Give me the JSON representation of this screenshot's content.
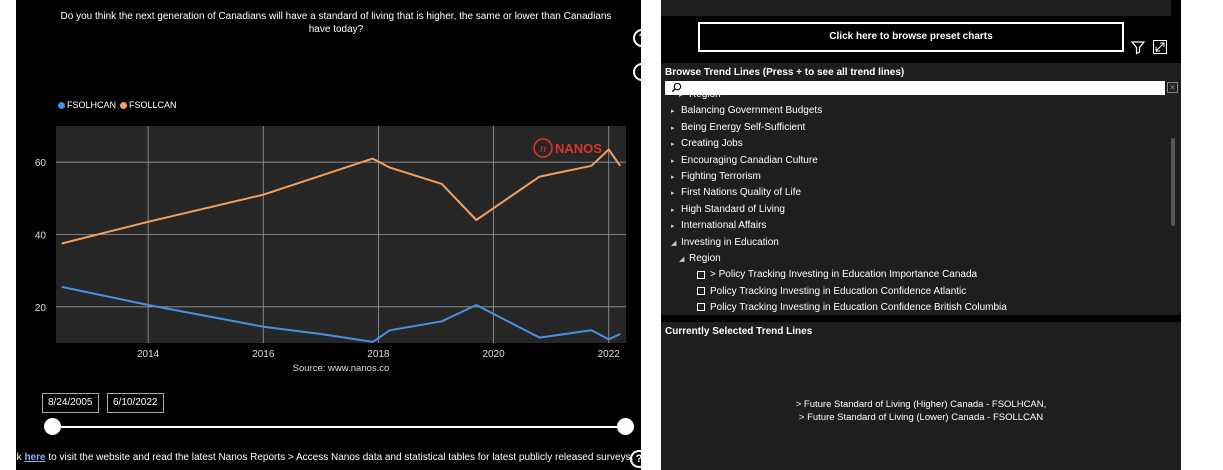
{
  "question": "Do you think the next generation of Canadians will have a standard of living that is higher, the same or lower than Canadians have today?",
  "chart_data": {
    "type": "line",
    "x_range": [
      2012.4,
      2022.3
    ],
    "ylim": [
      10,
      70
    ],
    "grid": true,
    "legend_position": "top-left",
    "x_ticks": [
      "2014",
      "2016",
      "2018",
      "2020",
      "2022"
    ],
    "y_ticks": [
      "20",
      "40",
      "60"
    ],
    "source": "Source: www.nanos.co",
    "watermark": "NANOS",
    "series": [
      {
        "name": "FSOLHCAN",
        "color": "#4a90e2",
        "x": [
          2012.5,
          2014.0,
          2015.0,
          2016.0,
          2017.0,
          2017.9,
          2018.2,
          2019.1,
          2019.7,
          2020.8,
          2021.7,
          2022.0,
          2022.2
        ],
        "y": [
          25.5,
          20.5,
          17.5,
          14.5,
          12.5,
          10.3,
          13.5,
          16.0,
          20.5,
          11.5,
          13.5,
          11.0,
          12.5
        ]
      },
      {
        "name": "FSOLLCAN",
        "color": "#f0a060",
        "x": [
          2012.5,
          2014.0,
          2016.0,
          2017.9,
          2018.2,
          2019.1,
          2019.7,
          2020.8,
          2021.7,
          2022.0,
          2022.2
        ],
        "y": [
          37.5,
          43.5,
          51.0,
          61.0,
          58.5,
          54.0,
          44.0,
          56.0,
          59.0,
          63.5,
          59.0
        ]
      }
    ]
  },
  "date_range": {
    "start": "8/24/2005",
    "end": "6/10/2022"
  },
  "footer": {
    "prefix": "Click ",
    "link": "here",
    "suffix": " to visit the website and read the latest Nanos Reports > Access Nanos data and statistical tables for latest publicly released surveys."
  },
  "preset_button": "Click here to browse preset charts",
  "tree": {
    "title": "Browse Trend Lines (Press + to see all trend lines)",
    "items": [
      {
        "label": "Region",
        "type": "sub-collapsed"
      },
      {
        "label": "Balancing Government Budgets",
        "type": "collapsed"
      },
      {
        "label": "Being Energy Self-Sufficient",
        "type": "collapsed"
      },
      {
        "label": "Creating Jobs",
        "type": "collapsed"
      },
      {
        "label": "Encouraging Canadian Culture",
        "type": "collapsed"
      },
      {
        "label": "Fighting Terrorism",
        "type": "collapsed"
      },
      {
        "label": "First Nations Quality of Life",
        "type": "collapsed"
      },
      {
        "label": "High Standard of Living",
        "type": "collapsed"
      },
      {
        "label": "International Affairs",
        "type": "collapsed"
      },
      {
        "label": "Investing in Education",
        "type": "expanded"
      },
      {
        "label": "Region",
        "type": "sub-expanded"
      },
      {
        "label": "> Policy Tracking Investing in Education Importance Canada",
        "type": "check"
      },
      {
        "label": "Policy Tracking Investing in Education Confidence Atlantic",
        "type": "check"
      },
      {
        "label": "Policy Tracking Investing in Education Confidence British Columbia",
        "type": "check"
      }
    ]
  },
  "selected": {
    "title": "Currently Selected Trend Lines",
    "line1": "> Future Standard of Living (Higher) Canada - FSOLHCAN,",
    "line2": "> Future Standard of Living (Lower) Canada - FSOLLCAN"
  }
}
